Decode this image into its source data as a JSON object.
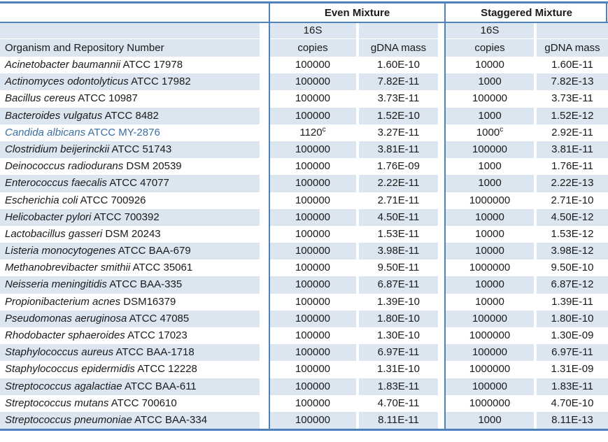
{
  "header": {
    "even_label": "Even Mixture",
    "staggered_label": "Staggered Mixture",
    "organism_label": "Organism and Repository Number",
    "sixteen_s_label": "16S",
    "copies_label": "copies",
    "gdna_label": "gDNA mass"
  },
  "colors": {
    "border_blue": "#4f81bd",
    "row_shade": "#dce6f1",
    "highlight_text": "#3a6ea5",
    "text": "#1a1a1a"
  },
  "rows": [
    {
      "name": "Acinetobacter baumannii",
      "id": "ATCC 17978",
      "ec": "100000",
      "ecs": "",
      "em": "1.60E-10",
      "sc": "10000",
      "scs": "",
      "sm": "1.60E-11",
      "blue": false
    },
    {
      "name": "Actinomyces odontolyticus",
      "id": "ATCC 17982",
      "ec": "100000",
      "ecs": "",
      "em": "7.82E-11",
      "sc": "1000",
      "scs": "",
      "sm": "7.82E-13",
      "blue": false
    },
    {
      "name": "Bacillus cereus",
      "id": "ATCC 10987",
      "ec": "100000",
      "ecs": "",
      "em": "3.73E-11",
      "sc": "100000",
      "scs": "",
      "sm": "3.73E-11",
      "blue": false
    },
    {
      "name": "Bacteroides vulgatus",
      "id": "ATCC 8482",
      "ec": "100000",
      "ecs": "",
      "em": "1.52E-10",
      "sc": "1000",
      "scs": "",
      "sm": "1.52E-12",
      "blue": false
    },
    {
      "name": "Candida albicans",
      "id": "ATCC MY-2876",
      "ec": "1120",
      "ecs": "c",
      "em": "3.27E-11",
      "sc": "1000",
      "scs": "c",
      "sm": "2.92E-11",
      "blue": true
    },
    {
      "name": "Clostridium beijerinckii",
      "id": "ATCC 51743",
      "ec": "100000",
      "ecs": "",
      "em": "3.81E-11",
      "sc": "100000",
      "scs": "",
      "sm": "3.81E-11",
      "blue": false
    },
    {
      "name": "Deinococcus radiodurans",
      "id": "DSM 20539",
      "ec": "100000",
      "ecs": "",
      "em": "1.76E-09",
      "sc": "1000",
      "scs": "",
      "sm": "1.76E-11",
      "blue": false
    },
    {
      "name": "Enterococcus faecalis",
      "id": "ATCC 47077",
      "ec": "100000",
      "ecs": "",
      "em": "2.22E-11",
      "sc": "1000",
      "scs": "",
      "sm": "2.22E-13",
      "blue": false
    },
    {
      "name": "Escherichia coli",
      "id": "ATCC 700926",
      "ec": "100000",
      "ecs": "",
      "em": "2.71E-11",
      "sc": "1000000",
      "scs": "",
      "sm": "2.71E-10",
      "blue": false
    },
    {
      "name": "Helicobacter pylori",
      "id": "ATCC 700392",
      "ec": "100000",
      "ecs": "",
      "em": "4.50E-11",
      "sc": "10000",
      "scs": "",
      "sm": "4.50E-12",
      "blue": false
    },
    {
      "name": "Lactobacillus gasseri",
      "id": "DSM 20243",
      "ec": "100000",
      "ecs": "",
      "em": "1.53E-11",
      "sc": "10000",
      "scs": "",
      "sm": "1.53E-12",
      "blue": false
    },
    {
      "name": "Listeria monocytogenes",
      "id": "ATCC BAA-679",
      "ec": "100000",
      "ecs": "",
      "em": "3.98E-11",
      "sc": "10000",
      "scs": "",
      "sm": "3.98E-12",
      "blue": false
    },
    {
      "name": "Methanobrevibacter smithii",
      "id": "ATCC 35061",
      "ec": "100000",
      "ecs": "",
      "em": "9.50E-11",
      "sc": "1000000",
      "scs": "",
      "sm": "9.50E-10",
      "blue": false
    },
    {
      "name": "Neisseria meningitidis",
      "id": "ATCC BAA-335",
      "ec": "100000",
      "ecs": "",
      "em": "6.87E-11",
      "sc": "10000",
      "scs": "",
      "sm": "6.87E-12",
      "blue": false
    },
    {
      "name": "Propionibacterium acnes",
      "id": "DSM16379",
      "ec": "100000",
      "ecs": "",
      "em": "1.39E-10",
      "sc": "10000",
      "scs": "",
      "sm": "1.39E-11",
      "blue": false
    },
    {
      "name": "Pseudomonas aeruginosa",
      "id": "ATCC 47085",
      "ec": "100000",
      "ecs": "",
      "em": "1.80E-10",
      "sc": "100000",
      "scs": "",
      "sm": "1.80E-10",
      "blue": false
    },
    {
      "name": "Rhodobacter sphaeroides",
      "id": "ATCC 17023",
      "ec": "100000",
      "ecs": "",
      "em": "1.30E-10",
      "sc": "1000000",
      "scs": "",
      "sm": "1.30E-09",
      "blue": false
    },
    {
      "name": "Staphylococcus aureus",
      "id": "ATCC BAA-1718",
      "ec": "100000",
      "ecs": "",
      "em": "6.97E-11",
      "sc": "100000",
      "scs": "",
      "sm": "6.97E-11",
      "blue": false
    },
    {
      "name": "Staphylococcus epidermidis",
      "id": "ATCC 12228",
      "ec": "100000",
      "ecs": "",
      "em": "1.31E-10",
      "sc": "1000000",
      "scs": "",
      "sm": "1.31E-09",
      "blue": false
    },
    {
      "name": "Streptococcus agalactiae",
      "id": "ATCC BAA-611",
      "ec": "100000",
      "ecs": "",
      "em": "1.83E-11",
      "sc": "100000",
      "scs": "",
      "sm": "1.83E-11",
      "blue": false
    },
    {
      "name": "Streptococcus mutans",
      "id": "ATCC 700610",
      "ec": "100000",
      "ecs": "",
      "em": "4.70E-11",
      "sc": "1000000",
      "scs": "",
      "sm": "4.70E-10",
      "blue": false
    },
    {
      "name": "Streptococcus pneumoniae",
      "id": "ATCC BAA-334",
      "ec": "100000",
      "ecs": "",
      "em": "8.11E-11",
      "sc": "1000",
      "scs": "",
      "sm": "8.11E-13",
      "blue": false
    }
  ]
}
